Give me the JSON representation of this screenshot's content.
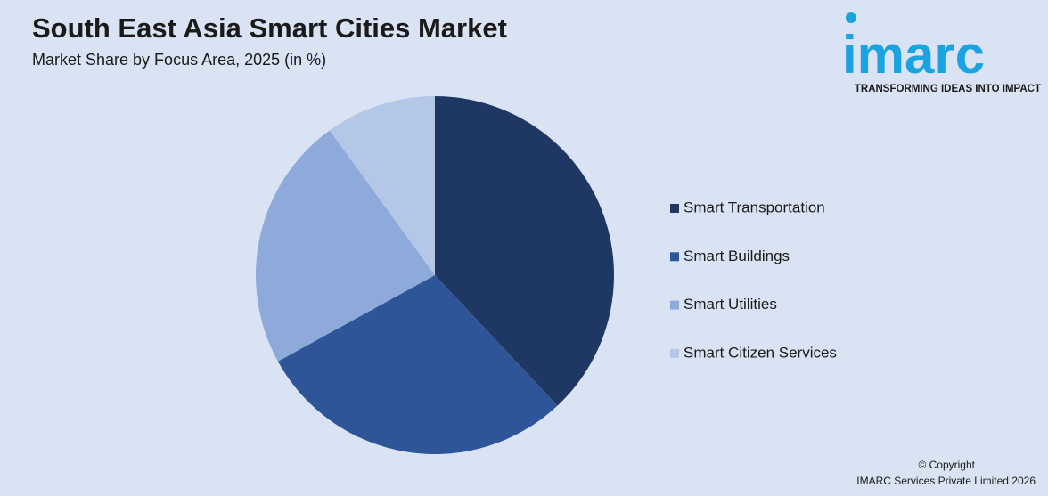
{
  "chart_data": {
    "type": "pie",
    "title": "South East Asia Smart Cities Market",
    "subtitle": "Market Share by Focus Area, 2025 (in %)",
    "categories": [
      "Smart Transportation",
      "Smart Buildings",
      "Smart Utilities",
      "Smart Citizen Services"
    ],
    "values": [
      38,
      29,
      23,
      10
    ],
    "colors": [
      "#1f3763",
      "#2e5597",
      "#8eaadb",
      "#b4c7e7"
    ],
    "legend": "right"
  },
  "logo": {
    "text": "imarc",
    "tagline": "TRANSFORMING IDEAS INTO IMPACT"
  },
  "footer": {
    "copyright": "© Copyright",
    "company": "IMARC Services Private Limited 2026"
  }
}
